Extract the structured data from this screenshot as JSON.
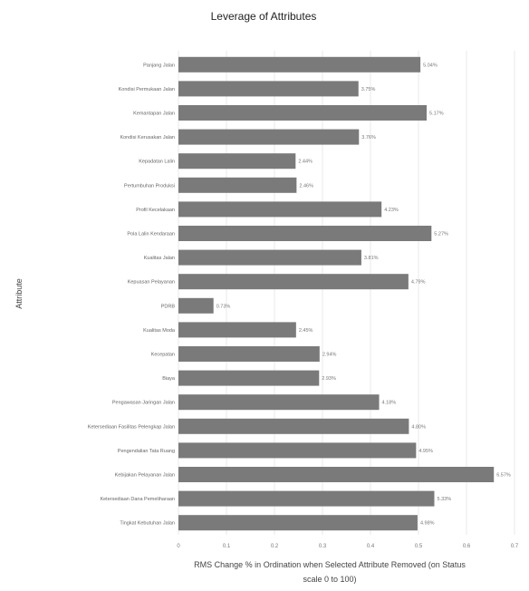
{
  "chart_data": {
    "type": "bar",
    "orientation": "horizontal",
    "title": "Leverage of Attributes",
    "ylabel": "Attribute",
    "xlabel_lines": [
      "RMS Change % in Ordination when Selected Attribute Removed (on Status",
      "scale 0 to 100)"
    ],
    "xlim": [
      0,
      7.0
    ],
    "xticks": [
      "0",
      "0.1",
      "0.2",
      "0.3",
      "0.4",
      "0.5",
      "0.6",
      "0.7"
    ],
    "xtick_values": [
      0,
      1,
      2,
      3,
      4,
      5,
      6,
      7
    ],
    "bar_color": "#7a7a7a",
    "grid": true,
    "categories": [
      "Panjang Jalan",
      "Kondisi Permukaan Jalan",
      "Kemantapan Jalan",
      "Kondisi Kerusakan Jalan",
      "Kepadatan Lalin",
      "Pertumbuhan Produksi",
      "Profil Kecelakaan",
      "Pola Lalin Kendaraan",
      "Kualitas Jalan",
      "Kepuasan Pelayanan",
      "PDRB",
      "Kualitas Moda",
      "Kecepatan",
      "Biaya",
      "Pengawasan Jaringan Jalan",
      "Ketersediaan Fasilitas Pelengkap Jalan",
      "Pengendalian Tata Ruang",
      "Kebijakan Pelayanan Jalan",
      "Ketersediaan Dana Pemeliharaan",
      "Tingkat Kebutuhan Jalan"
    ],
    "values": [
      5.04,
      3.75,
      5.17,
      3.76,
      2.44,
      2.46,
      4.23,
      5.27,
      3.81,
      4.79,
      0.73,
      2.45,
      2.94,
      2.93,
      4.18,
      4.8,
      4.95,
      6.57,
      5.33,
      4.98
    ],
    "value_labels": [
      "5.04%",
      "3.75%",
      "5.17%",
      "3.76%",
      "2.44%",
      "2.46%",
      "4.23%",
      "5.27%",
      "3.81%",
      "4.79%",
      "0.73%",
      "2.45%",
      "2.94%",
      "2.93%",
      "4.18%",
      "4.80%",
      "4.95%",
      "6.57%",
      "5.33%",
      "4.98%"
    ]
  }
}
